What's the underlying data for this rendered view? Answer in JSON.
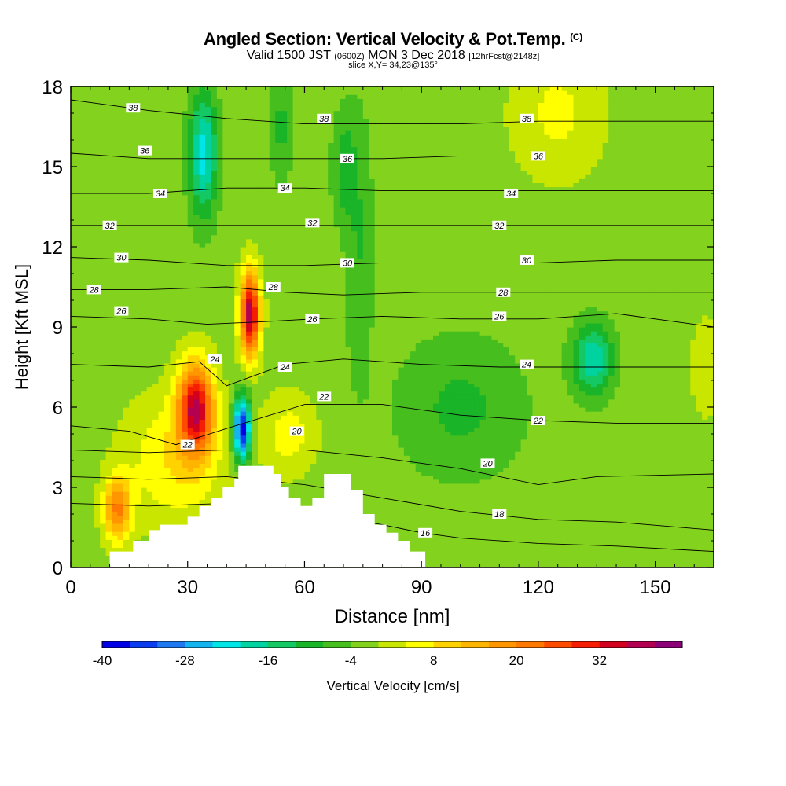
{
  "title": {
    "main": "Angled Section: Vertical Velocity & Pot.Temp.",
    "units": "(C)",
    "valid": "Valid 1500 JST",
    "valid_z": "(0600Z)",
    "date": "MON 3 Dec 2018",
    "fcst": "[12hrFcst@2148z]",
    "slice": "slice X,Y= 34,23@135°"
  },
  "chart_data": {
    "type": "contour",
    "xlabel": "Distance [nm]",
    "ylabel": "Height [Kft MSL]",
    "xlim": [
      0,
      165
    ],
    "ylim": [
      0,
      18
    ],
    "x_ticks": [
      0,
      30,
      60,
      90,
      120,
      150
    ],
    "y_ticks": [
      0,
      3,
      6,
      9,
      12,
      15,
      18
    ],
    "colorbar": {
      "label": "Vertical Velocity [cm/s]",
      "min": -40,
      "max": 44,
      "step": 4,
      "tick_labels": [
        "-40",
        "-28",
        "-16",
        "-4",
        "8",
        "20",
        "32"
      ],
      "tick_values": [
        -40,
        -28,
        -16,
        -4,
        8,
        20,
        32
      ],
      "colors": [
        "#0000e6",
        "#0a3cf0",
        "#1e78f0",
        "#14b4f0",
        "#00e6e6",
        "#00d2a0",
        "#14c864",
        "#19b428",
        "#46be1e",
        "#82d21e",
        "#c8e600",
        "#ffff00",
        "#ffd200",
        "#ffb400",
        "#ff9600",
        "#ff7800",
        "#ff4b00",
        "#f51e00",
        "#d2001e",
        "#b40050",
        "#8c0078"
      ]
    },
    "background_value": -2,
    "velocity_features": [
      {
        "x": 46,
        "y": 9.5,
        "peak": 40,
        "sx": 2.5,
        "sy": 1.6
      },
      {
        "x": 32,
        "y": 6.0,
        "peak": 36,
        "sx": 4.5,
        "sy": 1.7
      },
      {
        "x": 12,
        "y": 2.2,
        "peak": 22,
        "sx": 3.5,
        "sy": 1.2
      },
      {
        "x": 27,
        "y": 4.0,
        "peak": 10,
        "sx": 13,
        "sy": 2.4
      },
      {
        "x": 56,
        "y": 5.0,
        "peak": 8,
        "sx": 7,
        "sy": 1.5
      },
      {
        "x": 44,
        "y": 5.2,
        "peak": -38,
        "sx": 2.2,
        "sy": 1.2
      },
      {
        "x": 34,
        "y": 15.5,
        "peak": -20,
        "sx": 3.5,
        "sy": 2.3
      },
      {
        "x": 134,
        "y": 7.8,
        "peak": -18,
        "sx": 5,
        "sy": 1.3
      },
      {
        "x": 100,
        "y": 6.0,
        "peak": -7,
        "sx": 16,
        "sy": 2.6
      },
      {
        "x": 74,
        "y": 12.0,
        "peak": -6,
        "sx": 3.5,
        "sy": 5
      },
      {
        "x": 70,
        "y": 15.0,
        "peak": -8,
        "sx": 3,
        "sy": 2
      },
      {
        "x": 54,
        "y": 16.5,
        "peak": -7,
        "sx": 3,
        "sy": 2
      },
      {
        "x": 125,
        "y": 17.0,
        "peak": 7,
        "sx": 12,
        "sy": 2.5
      },
      {
        "x": 163,
        "y": 7.5,
        "peak": 5,
        "sx": 4,
        "sy": 2
      }
    ],
    "isentropes": [
      {
        "label": "16",
        "points": [
          [
            0,
            2.4
          ],
          [
            20,
            2.3
          ],
          [
            40,
            2.4
          ],
          [
            60,
            2.1
          ],
          [
            80,
            1.6
          ],
          [
            90,
            1.3
          ],
          [
            100,
            1.1
          ],
          [
            120,
            0.9
          ],
          [
            140,
            0.8
          ],
          [
            165,
            0.6
          ]
        ]
      },
      {
        "label": "18",
        "points": [
          [
            0,
            3.4
          ],
          [
            20,
            3.3
          ],
          [
            40,
            3.4
          ],
          [
            60,
            3.1
          ],
          [
            80,
            2.6
          ],
          [
            100,
            2.1
          ],
          [
            120,
            1.8
          ],
          [
            140,
            1.7
          ],
          [
            165,
            1.4
          ]
        ]
      },
      {
        "label": "20",
        "points": [
          [
            0,
            4.4
          ],
          [
            20,
            4.3
          ],
          [
            40,
            4.4
          ],
          [
            60,
            4.4
          ],
          [
            80,
            4.1
          ],
          [
            100,
            3.7
          ],
          [
            120,
            3.1
          ],
          [
            135,
            3.4
          ],
          [
            165,
            3.5
          ]
        ]
      },
      {
        "label": "22",
        "points": [
          [
            0,
            5.3
          ],
          [
            15,
            5.1
          ],
          [
            27,
            4.6
          ],
          [
            40,
            5.2
          ],
          [
            60,
            6.1
          ],
          [
            80,
            6.1
          ],
          [
            100,
            5.7
          ],
          [
            120,
            5.5
          ],
          [
            140,
            5.4
          ],
          [
            165,
            5.4
          ]
        ]
      },
      {
        "label": "24",
        "points": [
          [
            0,
            7.6
          ],
          [
            20,
            7.5
          ],
          [
            33,
            7.7
          ],
          [
            40,
            6.8
          ],
          [
            55,
            7.6
          ],
          [
            70,
            7.8
          ],
          [
            90,
            7.6
          ],
          [
            110,
            7.5
          ],
          [
            130,
            7.5
          ],
          [
            165,
            7.5
          ]
        ]
      },
      {
        "label": "26",
        "points": [
          [
            0,
            9.4
          ],
          [
            20,
            9.3
          ],
          [
            35,
            9.1
          ],
          [
            50,
            9.2
          ],
          [
            62,
            9.3
          ],
          [
            80,
            9.4
          ],
          [
            100,
            9.3
          ],
          [
            120,
            9.3
          ],
          [
            140,
            9.5
          ],
          [
            165,
            9.0
          ]
        ]
      },
      {
        "label": "28",
        "points": [
          [
            0,
            10.4
          ],
          [
            20,
            10.4
          ],
          [
            40,
            10.5
          ],
          [
            55,
            10.3
          ],
          [
            70,
            10.2
          ],
          [
            90,
            10.3
          ],
          [
            110,
            10.3
          ],
          [
            130,
            10.3
          ],
          [
            165,
            10.3
          ]
        ]
      },
      {
        "label": "30",
        "points": [
          [
            0,
            11.6
          ],
          [
            20,
            11.5
          ],
          [
            40,
            11.3
          ],
          [
            60,
            11.3
          ],
          [
            80,
            11.4
          ],
          [
            100,
            11.4
          ],
          [
            120,
            11.4
          ],
          [
            140,
            11.5
          ],
          [
            165,
            11.5
          ]
        ]
      },
      {
        "label": "32",
        "points": [
          [
            0,
            12.8
          ],
          [
            20,
            12.8
          ],
          [
            40,
            12.8
          ],
          [
            60,
            12.8
          ],
          [
            80,
            12.8
          ],
          [
            100,
            12.8
          ],
          [
            120,
            12.8
          ],
          [
            140,
            12.8
          ],
          [
            165,
            12.8
          ]
        ]
      },
      {
        "label": "34",
        "points": [
          [
            0,
            14.0
          ],
          [
            20,
            14.0
          ],
          [
            40,
            14.2
          ],
          [
            60,
            14.2
          ],
          [
            80,
            14.1
          ],
          [
            100,
            14.1
          ],
          [
            120,
            14.1
          ],
          [
            140,
            14.1
          ],
          [
            165,
            14.1
          ]
        ]
      },
      {
        "label": "36",
        "points": [
          [
            0,
            15.5
          ],
          [
            20,
            15.3
          ],
          [
            40,
            15.3
          ],
          [
            60,
            15.3
          ],
          [
            80,
            15.3
          ],
          [
            100,
            15.4
          ],
          [
            120,
            15.4
          ],
          [
            140,
            15.4
          ],
          [
            165,
            15.4
          ]
        ]
      },
      {
        "label": "38",
        "points": [
          [
            0,
            17.5
          ],
          [
            20,
            17.1
          ],
          [
            40,
            16.8
          ],
          [
            60,
            16.6
          ],
          [
            80,
            16.6
          ],
          [
            100,
            16.6
          ],
          [
            120,
            16.7
          ],
          [
            140,
            16.7
          ],
          [
            165,
            16.7
          ]
        ]
      }
    ],
    "contour_labels": [
      {
        "text": "38",
        "x": 16,
        "y": 17.2
      },
      {
        "text": "38",
        "x": 65,
        "y": 16.8
      },
      {
        "text": "38",
        "x": 117,
        "y": 16.8
      },
      {
        "text": "36",
        "x": 19,
        "y": 15.6
      },
      {
        "text": "36",
        "x": 71,
        "y": 15.3
      },
      {
        "text": "36",
        "x": 120,
        "y": 15.4
      },
      {
        "text": "34",
        "x": 23,
        "y": 14.0
      },
      {
        "text": "34",
        "x": 55,
        "y": 14.2
      },
      {
        "text": "34",
        "x": 113,
        "y": 14.0
      },
      {
        "text": "32",
        "x": 10,
        "y": 12.8
      },
      {
        "text": "32",
        "x": 62,
        "y": 12.9
      },
      {
        "text": "32",
        "x": 110,
        "y": 12.8
      },
      {
        "text": "30",
        "x": 13,
        "y": 11.6
      },
      {
        "text": "30",
        "x": 71,
        "y": 11.4
      },
      {
        "text": "30",
        "x": 117,
        "y": 11.5
      },
      {
        "text": "28",
        "x": 6,
        "y": 10.4
      },
      {
        "text": "28",
        "x": 52,
        "y": 10.5
      },
      {
        "text": "28",
        "x": 111,
        "y": 10.3
      },
      {
        "text": "26",
        "x": 13,
        "y": 9.6
      },
      {
        "text": "26",
        "x": 62,
        "y": 9.3
      },
      {
        "text": "26",
        "x": 110,
        "y": 9.4
      },
      {
        "text": "24",
        "x": 37,
        "y": 7.8
      },
      {
        "text": "24",
        "x": 55,
        "y": 7.5
      },
      {
        "text": "24",
        "x": 117,
        "y": 7.6
      },
      {
        "text": "22",
        "x": 30,
        "y": 4.6
      },
      {
        "text": "22",
        "x": 65,
        "y": 6.4
      },
      {
        "text": "22",
        "x": 120,
        "y": 5.5
      },
      {
        "text": "20",
        "x": 58,
        "y": 5.1
      },
      {
        "text": "20",
        "x": 107,
        "y": 3.9
      },
      {
        "text": "18",
        "x": 110,
        "y": 2.0
      },
      {
        "text": "16",
        "x": 91,
        "y": 1.3
      }
    ],
    "terrain": [
      [
        0,
        0
      ],
      [
        10,
        0
      ],
      [
        10,
        0.6
      ],
      [
        16,
        0.6
      ],
      [
        16,
        1.0
      ],
      [
        20,
        1.0
      ],
      [
        20,
        1.4
      ],
      [
        23,
        1.4
      ],
      [
        23,
        1.6
      ],
      [
        30,
        1.6
      ],
      [
        30,
        1.9
      ],
      [
        33,
        1.9
      ],
      [
        33,
        2.3
      ],
      [
        36,
        2.3
      ],
      [
        36,
        2.6
      ],
      [
        39,
        2.6
      ],
      [
        39,
        3.0
      ],
      [
        42,
        3.0
      ],
      [
        42,
        3.3
      ],
      [
        43,
        3.3
      ],
      [
        43,
        3.8
      ],
      [
        52,
        3.8
      ],
      [
        52,
        3.5
      ],
      [
        54,
        3.5
      ],
      [
        54,
        3.0
      ],
      [
        56,
        3.0
      ],
      [
        56,
        2.6
      ],
      [
        59,
        2.6
      ],
      [
        59,
        2.3
      ],
      [
        62,
        2.3
      ],
      [
        62,
        2.6
      ],
      [
        65,
        2.6
      ],
      [
        65,
        3.5
      ],
      [
        72,
        3.5
      ],
      [
        72,
        2.9
      ],
      [
        75,
        2.9
      ],
      [
        75,
        2.0
      ],
      [
        78,
        2.0
      ],
      [
        78,
        1.6
      ],
      [
        81,
        1.6
      ],
      [
        81,
        1.3
      ],
      [
        84,
        1.3
      ],
      [
        84,
        1.0
      ],
      [
        87,
        1.0
      ],
      [
        87,
        0.6
      ],
      [
        91,
        0.6
      ],
      [
        91,
        0
      ],
      [
        165,
        0
      ]
    ]
  }
}
